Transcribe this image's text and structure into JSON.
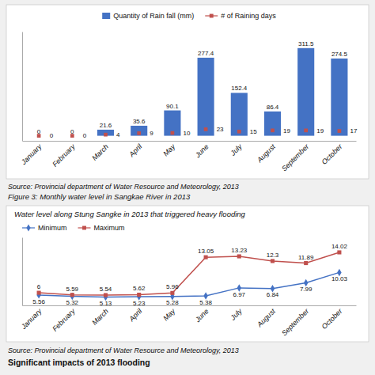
{
  "chart_data": [
    {
      "type": "bar",
      "categories": [
        "January",
        "February",
        "March",
        "April",
        "May",
        "June",
        "July",
        "August",
        "September",
        "October"
      ],
      "series": [
        {
          "name": "Quantity of Rain fall (mm)",
          "type": "bar",
          "color": "#4472C4",
          "values": [
            0,
            0,
            21.6,
            35.6,
            90.1,
            277.4,
            152.4,
            86.4,
            311.5,
            274.5
          ]
        },
        {
          "name": "# of Raining days",
          "type": "scatter",
          "color": "#C0504D",
          "marker": "square",
          "values": [
            0,
            0,
            4,
            9,
            10,
            23,
            15,
            19,
            19,
            17
          ]
        }
      ],
      "ylim": [
        -18,
        370
      ],
      "data_labels": true,
      "tick_labels": "x",
      "legend": "upper center",
      "annotations": [
        "Source: Provincial department of Water Resource and Meteorology, 2013"
      ]
    },
    {
      "type": "line",
      "title": "Figure 3: Monthly water level in Sangkae River in 2013",
      "subtitle": "Water level along Stung Sangke in 2013 that triggered heavy flooding",
      "categories": [
        "January",
        "February",
        "March",
        "April",
        "May",
        "June",
        "July",
        "August",
        "September",
        "October"
      ],
      "series": [
        {
          "name": "Minimum",
          "color": "#4472C4",
          "marker": "diamond",
          "values": [
            5.56,
            5.32,
            5.13,
            5.23,
            5.28,
            5.38,
            6.97,
            6.84,
            7.99,
            10.03
          ]
        },
        {
          "name": "Maximum",
          "color": "#C0504D",
          "marker": "square",
          "values": [
            6.0,
            5.59,
            5.54,
            5.62,
            5.96,
            13.05,
            13.23,
            12.3,
            11.89,
            14.02
          ]
        }
      ],
      "ylim": [
        3.5,
        17
      ],
      "data_labels": true,
      "tick_labels": "x",
      "legend": "upper left",
      "annotations": [
        "Source: Provincial department of Water Resource and Meteorology, 2013",
        "Significant impacts of 2013 flooding"
      ]
    }
  ]
}
